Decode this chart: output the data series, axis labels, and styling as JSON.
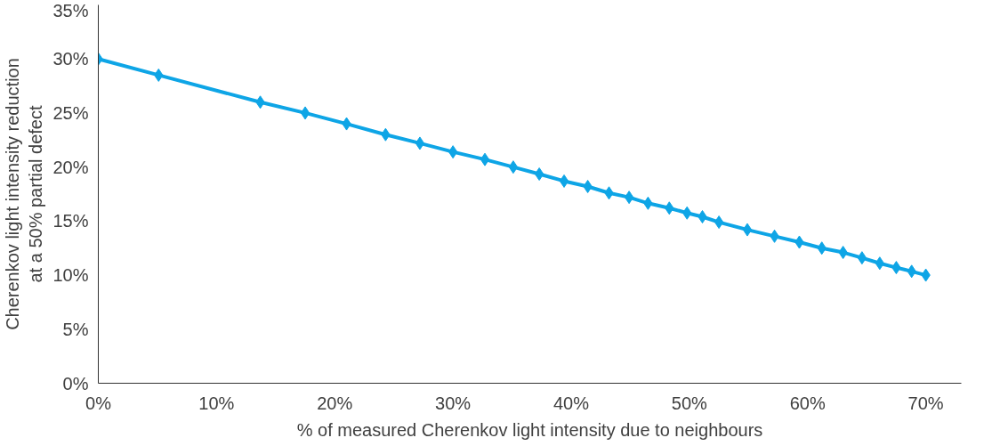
{
  "chart_data": {
    "type": "line",
    "xlabel": "% of measured Cherenkov light intensity due to neighbours",
    "ylabel": "Cherenkov light intensity reduction\nat a 50% partial defect",
    "x": [
      0,
      5.1,
      13.7,
      17.5,
      21.0,
      24.3,
      27.2,
      30.0,
      32.7,
      35.1,
      37.3,
      39.4,
      41.4,
      43.2,
      44.9,
      46.5,
      48.3,
      49.8,
      51.1,
      52.5,
      54.9,
      57.2,
      59.3,
      61.2,
      63.0,
      64.6,
      66.1,
      67.5,
      68.8,
      70
    ],
    "series": [
      {
        "color": "#0ea5e6",
        "values": [
          30,
          28.5,
          26.0,
          25.0,
          24.0,
          23.0,
          22.2,
          21.4,
          20.7,
          20.0,
          19.35,
          18.7,
          18.2,
          17.6,
          17.2,
          16.65,
          16.2,
          15.75,
          15.4,
          14.9,
          14.2,
          13.6,
          13.05,
          12.5,
          12.1,
          11.6,
          11.1,
          10.7,
          10.35,
          10.0
        ]
      }
    ],
    "xlim": [
      0,
      73
    ],
    "ylim": [
      0,
      35
    ],
    "xticks": [
      {
        "value": 0,
        "label": "0%"
      },
      {
        "value": 10,
        "label": "10%"
      },
      {
        "value": 20,
        "label": "20%"
      },
      {
        "value": 30,
        "label": "30%"
      },
      {
        "value": 40,
        "label": "40%"
      },
      {
        "value": 50,
        "label": "50%"
      },
      {
        "value": 60,
        "label": "60%"
      },
      {
        "value": 70,
        "label": "70%"
      }
    ],
    "yticks": [
      {
        "value": 0,
        "label": "0%"
      },
      {
        "value": 5,
        "label": "5%"
      },
      {
        "value": 10,
        "label": "10%"
      },
      {
        "value": 15,
        "label": "15%"
      },
      {
        "value": 20,
        "label": "20%"
      },
      {
        "value": 25,
        "label": "25%"
      },
      {
        "value": 30,
        "label": "30%"
      },
      {
        "value": 35,
        "label": "35%"
      }
    ],
    "grid": false,
    "marker": "diamond",
    "line_style": "solid"
  }
}
